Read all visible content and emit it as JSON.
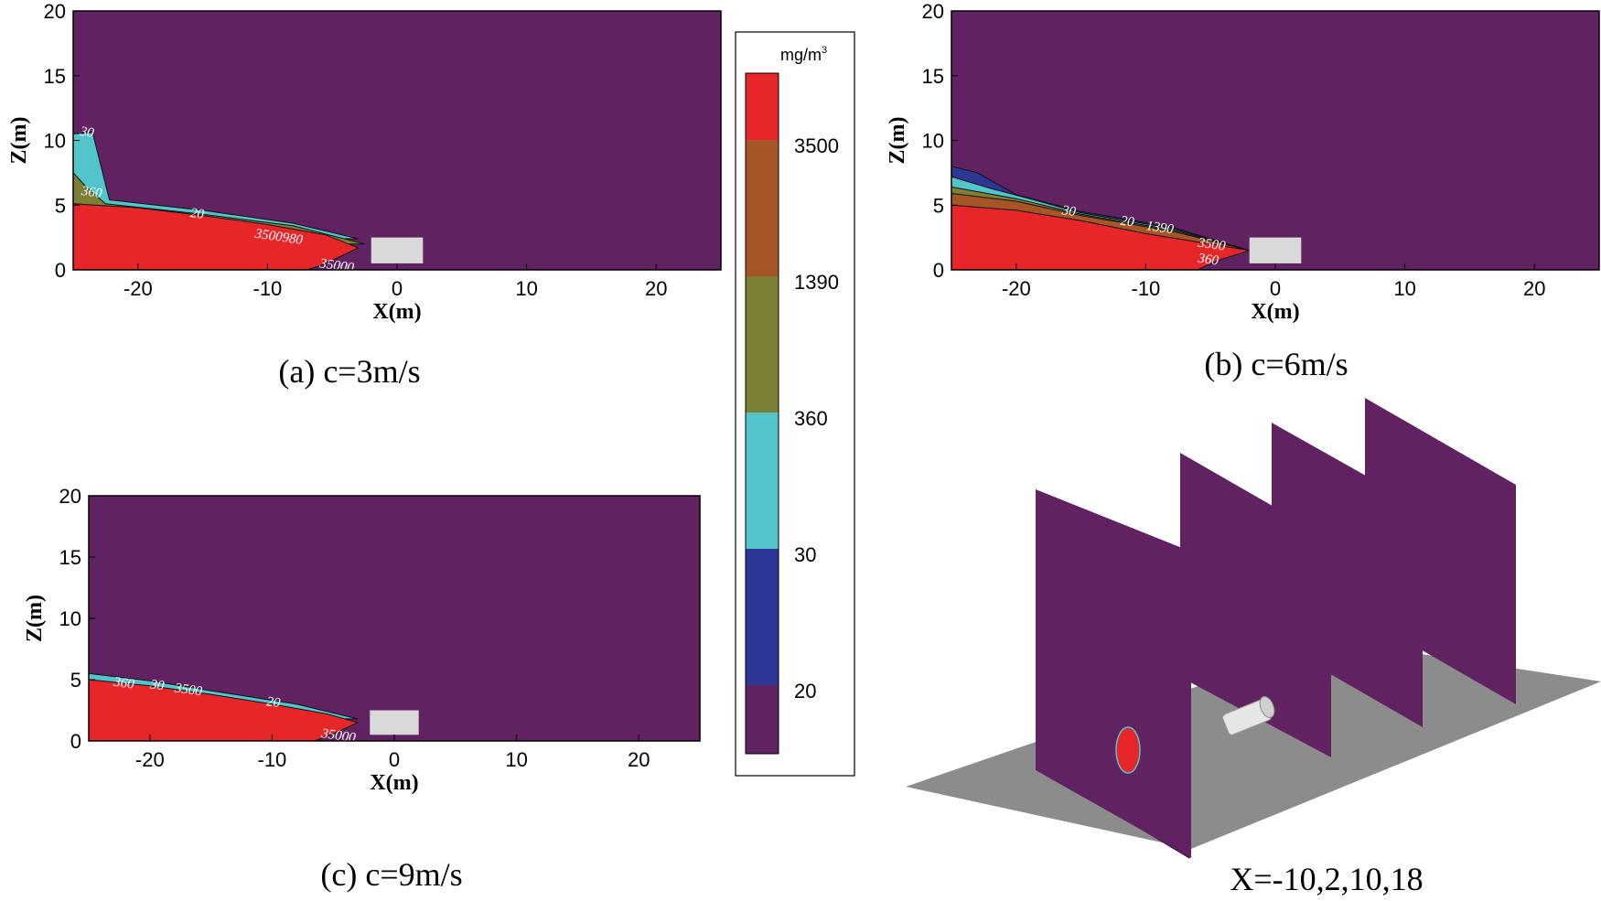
{
  "colors": {
    "background": "#612262",
    "level_20": "#2e3795",
    "level_30": "#52c4cc",
    "level_360": "#7d7f34",
    "level_1390": "#a65527",
    "level_3500": "#e7262a",
    "obstacle": "#d9d9d9",
    "ground": "#8c8c8c"
  },
  "colorbar": {
    "unit": "mg/m",
    "unit_sup": "3",
    "levels": [
      3500,
      1390,
      360,
      30,
      20
    ],
    "tick_labels": [
      "3500",
      "1390",
      "360",
      "30",
      "20"
    ]
  },
  "chart_data": [
    {
      "type": "contour",
      "panel": "a",
      "caption": "(a) c=3m/s",
      "xlabel": "X(m)",
      "ylabel": "Z(m)",
      "xlim": [
        -25,
        25
      ],
      "ylim": [
        0,
        20
      ],
      "xticks": [
        -20,
        -10,
        0,
        10,
        20
      ],
      "yticks": [
        0,
        5,
        10,
        15,
        20
      ],
      "obstacle": {
        "x": [
          -2,
          2
        ],
        "z": [
          0.5,
          2.5
        ]
      },
      "bands": [
        {
          "level": 30,
          "polygon": [
            [
              -25,
              10.5
            ],
            [
              -23.5,
              10.6
            ],
            [
              -22.2,
              5.4
            ],
            [
              -15,
              4.6
            ],
            [
              -8,
              3.6
            ],
            [
              -3,
              2.4
            ],
            [
              -25,
              2.4
            ]
          ]
        },
        {
          "level": 360,
          "polygon": [
            [
              -25,
              7.5
            ],
            [
              -24,
              6.4
            ],
            [
              -22.5,
              5.1
            ],
            [
              -15,
              4.3
            ],
            [
              -8,
              3.4
            ],
            [
              -2.5,
              2
            ],
            [
              -25,
              2
            ]
          ]
        },
        {
          "level": 3500,
          "polygon": [
            [
              -25,
              5.1
            ],
            [
              -20,
              4.8
            ],
            [
              -15,
              4.2
            ],
            [
              -10,
              3.5
            ],
            [
              -5.5,
              2.7
            ],
            [
              -3,
              1.7
            ],
            [
              -4,
              1.2
            ],
            [
              -6,
              0.3
            ],
            [
              -7,
              0
            ],
            [
              -25,
              0
            ]
          ]
        }
      ],
      "contour_labels": [
        {
          "text": "30",
          "x": -24.5,
          "z": 10.4
        },
        {
          "text": "360",
          "x": -24.4,
          "z": 5.8
        },
        {
          "text": "20",
          "x": -16,
          "z": 4.1
        },
        {
          "text": "3500980",
          "x": -11,
          "z": 2.5
        },
        {
          "text": "35000",
          "x": -6,
          "z": 0.2
        }
      ]
    },
    {
      "type": "contour",
      "panel": "b",
      "caption": "(b) c=6m/s",
      "xlabel": "X(m)",
      "ylabel": "Z(m)",
      "xlim": [
        -25,
        25
      ],
      "ylim": [
        0,
        20
      ],
      "xticks": [
        -20,
        -10,
        0,
        10,
        20
      ],
      "yticks": [
        0,
        5,
        10,
        15,
        20
      ],
      "obstacle": {
        "x": [
          -2,
          2
        ],
        "z": [
          0.5,
          2.5
        ]
      },
      "bands": [
        {
          "level": 20,
          "polygon": [
            [
              -25,
              8
            ],
            [
              -23,
              7.5
            ],
            [
              -20,
              5.8
            ],
            [
              -15,
              4.5
            ],
            [
              -8,
              3.3
            ],
            [
              -2,
              1.5
            ],
            [
              -25,
              1.5
            ]
          ]
        },
        {
          "level": 30,
          "polygon": [
            [
              -25,
              7.2
            ],
            [
              -22,
              6.3
            ],
            [
              -19,
              5.5
            ],
            [
              -15,
              4.4
            ],
            [
              -8,
              3.2
            ],
            [
              -2,
              1.5
            ],
            [
              -25,
              1.5
            ]
          ]
        },
        {
          "level": 360,
          "polygon": [
            [
              -25,
              6.4
            ],
            [
              -20,
              5.5
            ],
            [
              -15,
              4.3
            ],
            [
              -8,
              3.1
            ],
            [
              -2,
              1.5
            ],
            [
              -25,
              1.5
            ]
          ]
        },
        {
          "level": 1390,
          "polygon": [
            [
              -25,
              5.9
            ],
            [
              -20,
              5.3
            ],
            [
              -15,
              4.2
            ],
            [
              -8,
              3
            ],
            [
              -2,
              1.5
            ],
            [
              -25,
              1.5
            ]
          ]
        },
        {
          "level": 3500,
          "polygon": [
            [
              -25,
              5
            ],
            [
              -20,
              4.6
            ],
            [
              -15,
              3.8
            ],
            [
              -10,
              2.8
            ],
            [
              -5,
              2
            ],
            [
              -2,
              1.5
            ],
            [
              -4.5,
              0.7
            ],
            [
              -6,
              0
            ],
            [
              -25,
              0
            ]
          ]
        }
      ],
      "contour_labels": [
        {
          "text": "30",
          "x": -16.5,
          "z": 4.3
        },
        {
          "text": "20",
          "x": -12,
          "z": 3.5
        },
        {
          "text": "1390",
          "x": -10,
          "z": 3.1
        },
        {
          "text": "3500",
          "x": -6,
          "z": 1.8
        },
        {
          "text": "360",
          "x": -6,
          "z": 0.6
        }
      ]
    },
    {
      "type": "contour",
      "panel": "c",
      "caption": "(c) c=9m/s",
      "xlabel": "X(m)",
      "ylabel": "Z(m)",
      "xlim": [
        -25,
        25
      ],
      "ylim": [
        0,
        20
      ],
      "xticks": [
        -20,
        -10,
        0,
        10,
        20
      ],
      "yticks": [
        0,
        5,
        10,
        15,
        20
      ],
      "obstacle": {
        "x": [
          -2,
          2
        ],
        "z": [
          0.5,
          2.5
        ]
      },
      "bands": [
        {
          "level": 30,
          "polygon": [
            [
              -25,
              5.5
            ],
            [
              -20,
              4.9
            ],
            [
              -15,
              4.1
            ],
            [
              -8,
              3
            ],
            [
              -3,
              1.8
            ],
            [
              -25,
              1.8
            ]
          ]
        },
        {
          "level": 3500,
          "polygon": [
            [
              -25,
              5
            ],
            [
              -20,
              4.5
            ],
            [
              -15,
              3.8
            ],
            [
              -10,
              3
            ],
            [
              -5.5,
              2.2
            ],
            [
              -3,
              1.5
            ],
            [
              -4.5,
              0.8
            ],
            [
              -6.5,
              0
            ],
            [
              -25,
              0
            ]
          ]
        }
      ],
      "contour_labels": [
        {
          "text": "360",
          "x": -23,
          "z": 4.5
        },
        {
          "text": "30",
          "x": -20,
          "z": 4.3
        },
        {
          "text": "3500",
          "x": -18,
          "z": 4
        },
        {
          "text": "20",
          "x": -10.5,
          "z": 2.9
        },
        {
          "text": "35000",
          "x": -6,
          "z": 0.3
        }
      ]
    },
    {
      "type": "3d-slices",
      "panel": "d",
      "caption": "X=-10,2,10,18",
      "slice_x": [
        -10,
        2,
        10,
        18
      ]
    }
  ]
}
